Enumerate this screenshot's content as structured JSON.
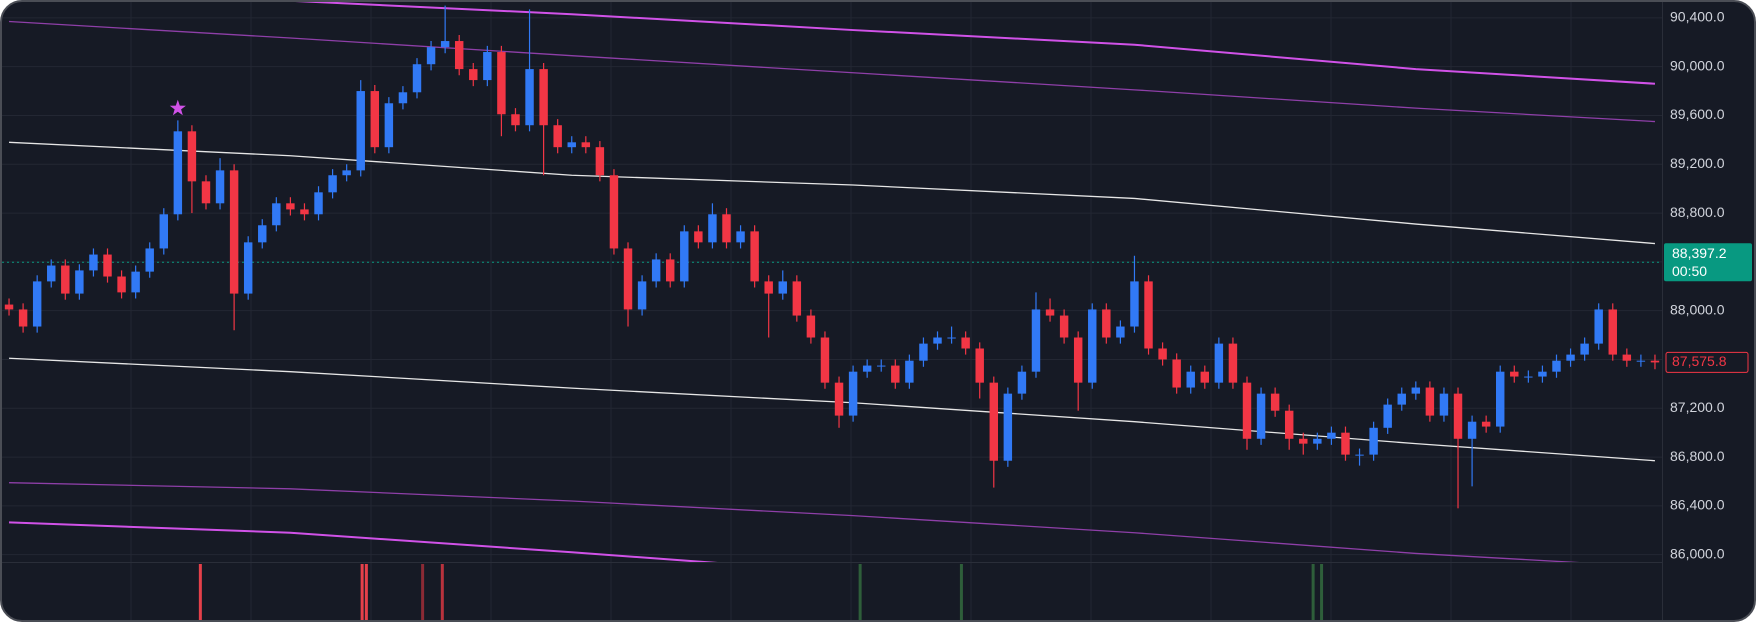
{
  "chart_data": {
    "type": "candlestick",
    "xlim": [
      -0.5,
      117.5
    ],
    "ylim": [
      85940,
      90530
    ],
    "yticks": [
      {
        "value": 86000,
        "label": "86,000.0"
      },
      {
        "value": 86400,
        "label": "86,400.0"
      },
      {
        "value": 86800,
        "label": "86,800.0"
      },
      {
        "value": 87200,
        "label": "87,200.0"
      },
      {
        "value": 87600,
        "label": "87,600.0"
      },
      {
        "value": 88000,
        "label": "88,000.0"
      },
      {
        "value": 88400,
        "label": "88,400.0"
      },
      {
        "value": 88800,
        "label": "88,800.0"
      },
      {
        "value": 89200,
        "label": "89,200.0"
      },
      {
        "value": 89600,
        "label": "89,600.0"
      },
      {
        "value": 90000,
        "label": "90,000.0"
      },
      {
        "value": 90400,
        "label": "90,400.0"
      }
    ],
    "grid": true,
    "up_color": "#3179f5",
    "down_color": "#f23645",
    "open": [
      88050,
      88010,
      87870,
      88240,
      88370,
      88140,
      88330,
      88460,
      88280,
      88150,
      88320,
      88510,
      88790,
      89470,
      89060,
      88880,
      89150,
      88140,
      88560,
      88700,
      88880,
      88830,
      88790,
      88970,
      89110,
      89150,
      89800,
      89340,
      89700,
      89790,
      90020,
      90160,
      90210,
      89980,
      89890,
      90120,
      89610,
      89520,
      89980,
      89520,
      89340,
      89380,
      89340,
      89110,
      88510,
      88010,
      88240,
      88420,
      88240,
      88650,
      88560,
      88790,
      88560,
      88650,
      88240,
      88140,
      88240,
      87960,
      87780,
      87410,
      87140,
      87500,
      87550,
      87550,
      87410,
      87590,
      87730,
      87780,
      87780,
      87690,
      87410,
      86770,
      87320,
      87500,
      88010,
      87960,
      87780,
      87410,
      88010,
      87780,
      87870,
      88240,
      87690,
      87600,
      87370,
      87500,
      87410,
      87730,
      87410,
      86950,
      87320,
      87180,
      86950,
      86910,
      86950,
      87000,
      86820,
      86820,
      87040,
      87230,
      87320,
      87370,
      87140,
      87320,
      86950,
      87090,
      87050,
      87500,
      87460,
      87460,
      87500,
      87590,
      87640,
      87730,
      88010,
      87640,
      87590,
      87590
    ],
    "high": [
      88100,
      88060,
      88290,
      88420,
      88420,
      88380,
      88510,
      88510,
      88330,
      88370,
      88560,
      88840,
      89560,
      89520,
      89110,
      89250,
      89200,
      88610,
      88750,
      88930,
      88930,
      88880,
      89020,
      89160,
      89200,
      89890,
      89850,
      89750,
      89840,
      90070,
      90210,
      90500,
      90260,
      90030,
      90170,
      90170,
      89660,
      90470,
      90030,
      89570,
      89430,
      89430,
      89390,
      89160,
      88560,
      88290,
      88470,
      88470,
      88700,
      88700,
      88880,
      88840,
      88700,
      88700,
      88290,
      88330,
      88290,
      88010,
      87830,
      87460,
      87550,
      87600,
      87600,
      87600,
      87640,
      87780,
      87830,
      87870,
      87830,
      87740,
      87460,
      87370,
      87550,
      88150,
      88100,
      88010,
      87830,
      88060,
      88060,
      87920,
      88450,
      88290,
      87740,
      87650,
      87550,
      87550,
      87780,
      87780,
      87460,
      87370,
      87370,
      87230,
      87000,
      87000,
      87050,
      87050,
      86870,
      87090,
      87280,
      87370,
      87420,
      87420,
      87370,
      87370,
      87140,
      87140,
      87550,
      87550,
      87510,
      87550,
      87640,
      87690,
      87780,
      88060,
      88060,
      87690,
      87640,
      87640
    ],
    "low": [
      87960,
      87820,
      87820,
      88190,
      88090,
      88090,
      88280,
      88230,
      88100,
      88100,
      88270,
      88460,
      88740,
      88800,
      88830,
      88830,
      87840,
      88090,
      88510,
      88650,
      88780,
      88740,
      88740,
      88920,
      89060,
      89100,
      89290,
      89290,
      89650,
      89740,
      89970,
      90110,
      89930,
      89840,
      89840,
      89430,
      89470,
      89470,
      89110,
      89290,
      89290,
      89290,
      89060,
      88460,
      87870,
      87960,
      88190,
      88190,
      88190,
      88510,
      88510,
      88510,
      88510,
      88190,
      87780,
      88090,
      87910,
      87730,
      87360,
      87040,
      87090,
      87450,
      87500,
      87360,
      87360,
      87540,
      87680,
      87730,
      87640,
      87280,
      86550,
      86720,
      87270,
      87450,
      87910,
      87730,
      87180,
      87360,
      87730,
      87730,
      87820,
      87640,
      87550,
      87320,
      87320,
      87360,
      87360,
      87360,
      86860,
      86900,
      87130,
      86860,
      86820,
      86860,
      86900,
      86770,
      86730,
      86770,
      86990,
      87180,
      87270,
      87090,
      87090,
      86380,
      86560,
      87000,
      87000,
      87410,
      87410,
      87410,
      87450,
      87540,
      87590,
      87680,
      87590,
      87540,
      87540,
      87520
    ],
    "close": [
      88010,
      87870,
      88240,
      88370,
      88140,
      88330,
      88460,
      88280,
      88150,
      88320,
      88510,
      88790,
      89470,
      89060,
      88880,
      89150,
      88140,
      88560,
      88700,
      88880,
      88830,
      88790,
      88970,
      89110,
      89150,
      89800,
      89340,
      89700,
      89790,
      90020,
      90160,
      90210,
      89980,
      89890,
      90120,
      89610,
      89520,
      89980,
      89520,
      89340,
      89380,
      89340,
      89110,
      88510,
      88010,
      88240,
      88420,
      88240,
      88650,
      88560,
      88790,
      88560,
      88650,
      88240,
      88140,
      88240,
      87960,
      87780,
      87410,
      87140,
      87500,
      87550,
      87550,
      87410,
      87590,
      87730,
      87780,
      87780,
      87690,
      87410,
      86770,
      87320,
      87500,
      88010,
      87960,
      87780,
      87410,
      88010,
      87780,
      87870,
      88240,
      87690,
      87600,
      87370,
      87500,
      87410,
      87730,
      87410,
      86950,
      87320,
      87180,
      86950,
      86910,
      86950,
      87000,
      86820,
      86820,
      87040,
      87230,
      87320,
      87370,
      87140,
      87320,
      86950,
      87090,
      87050,
      87500,
      87460,
      87460,
      87500,
      87590,
      87640,
      87730,
      88010,
      87640,
      87590,
      87590,
      87575.8
    ],
    "last_close_label": "87,575.8",
    "band_x": [
      0,
      20,
      40,
      60,
      80,
      100,
      117
    ],
    "bands": [
      {
        "color": "#d152e8",
        "values": [
          90660,
          90540,
          90430,
          90300,
          90180,
          89980,
          89860
        ]
      },
      {
        "color": "#8e3fa8",
        "values": [
          90370,
          90235,
          90090,
          89950,
          89810,
          89660,
          89550
        ]
      },
      {
        "color": "#e6e6e6",
        "values": [
          89380,
          89270,
          89110,
          89030,
          88920,
          88710,
          88550
        ]
      },
      {
        "color": "#e6e6e6",
        "values": [
          87610,
          87500,
          87365,
          87245,
          87090,
          86910,
          86770
        ]
      },
      {
        "color": "#8e3fa8",
        "values": [
          86590,
          86540,
          86440,
          86320,
          86180,
          86010,
          85900
        ]
      },
      {
        "color": "#d152e8",
        "values": [
          86265,
          86180,
          86020,
          85850,
          85700,
          85550,
          85400
        ]
      }
    ],
    "price_line": {
      "value": 88397.2,
      "label": "88,397.2",
      "countdown": "00:50",
      "color": "#089981"
    },
    "marker": {
      "x": 12,
      "y": 89560,
      "color": "#d152e8"
    },
    "signals": [
      {
        "x": 13.6,
        "color": "#e5404a"
      },
      {
        "x": 25.1,
        "color": "#e5404a"
      },
      {
        "x": 25.4,
        "color": "#e5404a"
      },
      {
        "x": 29.4,
        "color": "#8b2a35"
      },
      {
        "x": 30.8,
        "color": "#b8323d"
      },
      {
        "x": 60.5,
        "color": "#2e5e3a"
      },
      {
        "x": 67.7,
        "color": "#2e5e3a"
      },
      {
        "x": 92.7,
        "color": "#2e5e3a"
      },
      {
        "x": 93.3,
        "color": "#2e5e3a"
      }
    ]
  }
}
